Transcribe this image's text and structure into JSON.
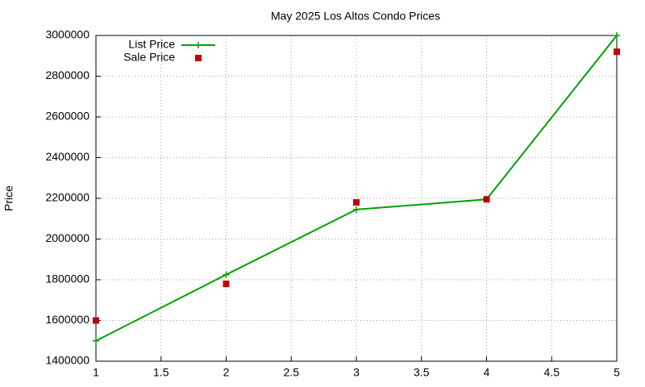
{
  "chart_data": {
    "type": "line",
    "title": "May 2025 Los Altos Condo Prices",
    "y_label": "Price",
    "x": [
      1,
      2,
      3,
      4,
      5
    ],
    "series": [
      {
        "name": "List Price",
        "color": "#00a000",
        "mode": "lines+markers",
        "values": [
          1500000,
          1825000,
          2145000,
          2195000,
          3000000
        ]
      },
      {
        "name": "Sale Price",
        "color": "#c00000",
        "mode": "markers",
        "values": [
          1600000,
          1780000,
          2180000,
          2195000,
          2920000
        ]
      }
    ],
    "xlim": [
      1,
      5
    ],
    "xticks": [
      1,
      1.5,
      2,
      2.5,
      3,
      3.5,
      4,
      4.5,
      5
    ],
    "ylim": [
      1400000,
      3000000
    ],
    "yticks": [
      1400000,
      1600000,
      1800000,
      2000000,
      2200000,
      2400000,
      2600000,
      2800000,
      3000000
    ],
    "grid": true,
    "legend": "top-left"
  }
}
